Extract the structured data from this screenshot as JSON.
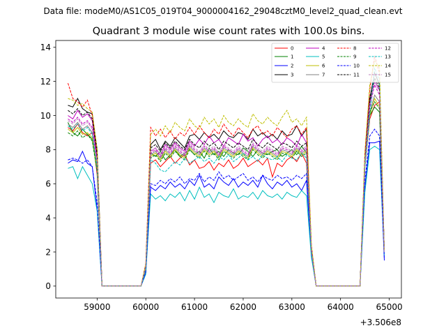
{
  "chart_data": {
    "type": "line",
    "supertitle": "Data file: modeM0/AS1C05_019T04_9000004162_29048cztM0_level2_quad_clean.evt",
    "title": "Quadrant 3 module wise count rates with 100.0s bins.",
    "xlabel": "",
    "ylabel": "",
    "x_offset_label": "+3.506e8",
    "xlim": [
      58150,
      65250
    ],
    "ylim": [
      -0.7,
      14.4
    ],
    "xticks": [
      59000,
      60000,
      61000,
      62000,
      63000,
      64000,
      65000
    ],
    "yticks": [
      0,
      2,
      4,
      6,
      8,
      10,
      12,
      14
    ],
    "grid": false,
    "legend_position": "top-right",
    "x": [
      58400,
      58500,
      58600,
      58700,
      58800,
      58900,
      59000,
      59100,
      59900,
      60000,
      60100,
      60200,
      60300,
      60400,
      60500,
      60600,
      60700,
      60800,
      60900,
      61000,
      61100,
      61200,
      61300,
      61400,
      61500,
      61600,
      61700,
      61800,
      61900,
      62000,
      62100,
      62200,
      62300,
      62400,
      62500,
      62600,
      62700,
      62800,
      62900,
      63000,
      63100,
      63200,
      63300,
      63400,
      63500,
      64400,
      64500,
      64600,
      64700,
      64800,
      64900
    ],
    "series": [
      {
        "name": "0",
        "color": "#ff0000",
        "dash": false,
        "values": [
          9.3,
          9.1,
          9.5,
          9.0,
          8.8,
          9.0,
          6.5,
          0,
          0,
          1.0,
          7.2,
          7.4,
          7.0,
          7.3,
          7.6,
          7.2,
          7.5,
          7.7,
          7.1,
          7.4,
          6.9,
          7.0,
          7.3,
          6.8,
          7.2,
          7.0,
          7.4,
          6.9,
          7.1,
          7.5,
          7.0,
          7.2,
          7.4,
          7.1,
          7.5,
          6.4,
          7.2,
          7.0,
          7.4,
          7.6,
          7.3,
          7.8,
          7.2,
          2.0,
          0,
          0,
          7.0,
          9.8,
          10.6,
          10.8,
          2.0
        ]
      },
      {
        "name": "1",
        "color": "#008000",
        "dash": false,
        "values": [
          9.6,
          9.0,
          8.8,
          9.2,
          8.9,
          8.6,
          6.8,
          0,
          0,
          1.0,
          7.8,
          7.6,
          7.9,
          7.4,
          7.7,
          8.0,
          7.6,
          7.8,
          8.0,
          7.7,
          7.9,
          7.5,
          8.1,
          7.7,
          7.9,
          7.6,
          8.0,
          7.8,
          7.7,
          8.1,
          7.9,
          7.6,
          8.0,
          7.8,
          7.7,
          7.9,
          8.0,
          7.6,
          7.8,
          8.0,
          7.7,
          8.2,
          7.8,
          2.0,
          0,
          0,
          7.2,
          10.0,
          10.5,
          10.2,
          2.0
        ]
      },
      {
        "name": "2",
        "color": "#0000ff",
        "dash": false,
        "values": [
          7.2,
          7.4,
          7.3,
          7.9,
          7.2,
          7.0,
          4.5,
          0,
          0,
          0.8,
          5.8,
          5.6,
          5.9,
          5.7,
          6.1,
          5.8,
          6.0,
          5.7,
          6.2,
          5.9,
          6.5,
          5.8,
          6.0,
          5.7,
          6.4,
          6.1,
          5.9,
          6.3,
          5.8,
          6.1,
          5.9,
          6.2,
          5.8,
          6.5,
          6.0,
          5.7,
          6.1,
          5.9,
          6.2,
          5.8,
          6.0,
          5.6,
          6.2,
          1.8,
          0,
          0,
          5.8,
          8.4,
          8.4,
          8.5,
          1.5
        ]
      },
      {
        "name": "3",
        "color": "#000000",
        "dash": false,
        "values": [
          10.6,
          10.5,
          11.0,
          10.4,
          10.2,
          10.1,
          8.0,
          0,
          0,
          1.2,
          8.3,
          8.6,
          8.0,
          8.5,
          8.2,
          8.7,
          8.4,
          8.1,
          8.8,
          8.9,
          8.6,
          9.0,
          8.7,
          8.9,
          8.6,
          9.1,
          8.8,
          8.7,
          9.0,
          8.9,
          8.6,
          9.2,
          8.8,
          9.0,
          8.7,
          8.9,
          8.6,
          9.1,
          8.8,
          8.9,
          9.4,
          8.8,
          9.2,
          2.3,
          0,
          0,
          7.5,
          11.0,
          12.5,
          11.8,
          2.0
        ]
      },
      {
        "name": "4",
        "color": "#bf00bf",
        "dash": false,
        "values": [
          10.0,
          9.8,
          10.3,
          9.9,
          10.1,
          9.7,
          7.5,
          0,
          0,
          1.1,
          7.9,
          8.1,
          7.7,
          8.3,
          8.0,
          8.4,
          8.1,
          7.9,
          8.5,
          8.2,
          8.6,
          8.3,
          8.8,
          8.4,
          8.6,
          8.2,
          8.7,
          8.5,
          8.3,
          8.9,
          8.5,
          8.7,
          8.2,
          8.6,
          8.8,
          8.4,
          8.6,
          8.3,
          8.7,
          8.5,
          8.2,
          8.9,
          8.4,
          2.2,
          0,
          0,
          7.3,
          10.8,
          12.0,
          11.5,
          2.0
        ]
      },
      {
        "name": "5",
        "color": "#00bfbf",
        "dash": false,
        "values": [
          6.9,
          7.0,
          6.3,
          7.0,
          6.5,
          6.0,
          4.4,
          0,
          0,
          0.7,
          5.4,
          5.1,
          5.3,
          5.0,
          5.4,
          5.2,
          5.5,
          5.0,
          5.6,
          5.1,
          5.8,
          5.2,
          5.4,
          4.9,
          5.5,
          5.3,
          5.2,
          5.7,
          5.1,
          5.3,
          5.2,
          5.5,
          5.1,
          5.6,
          5.3,
          5.2,
          5.4,
          5.1,
          5.5,
          5.3,
          5.2,
          5.6,
          5.3,
          1.7,
          0,
          0,
          5.5,
          8.0,
          8.2,
          8.0,
          1.8
        ]
      },
      {
        "name": "6",
        "color": "#bfbf00",
        "dash": false,
        "values": [
          9.2,
          9.0,
          9.3,
          8.9,
          9.0,
          8.7,
          6.9,
          0,
          0,
          1.0,
          7.6,
          7.8,
          7.4,
          7.9,
          7.6,
          8.0,
          7.7,
          7.5,
          8.1,
          7.8,
          7.6,
          8.0,
          7.7,
          7.9,
          7.5,
          8.0,
          7.8,
          7.6,
          7.9,
          7.7,
          7.5,
          8.1,
          7.8,
          7.6,
          7.9,
          7.7,
          7.5,
          7.9,
          7.8,
          7.6,
          8.0,
          7.7,
          7.9,
          2.0,
          0,
          0,
          7.0,
          10.0,
          11.0,
          10.5,
          2.0
        ]
      },
      {
        "name": "7",
        "color": "#808080",
        "dash": false,
        "values": [
          9.5,
          9.3,
          9.6,
          9.2,
          9.4,
          9.0,
          7.1,
          0,
          0,
          1.1,
          7.7,
          7.9,
          7.5,
          8.0,
          7.7,
          8.1,
          7.8,
          7.6,
          8.2,
          7.9,
          7.7,
          8.1,
          7.8,
          8.0,
          7.6,
          8.1,
          7.9,
          7.7,
          8.0,
          7.8,
          7.6,
          8.2,
          7.9,
          7.7,
          8.0,
          7.8,
          7.6,
          8.0,
          7.9,
          7.7,
          8.1,
          7.8,
          8.0,
          2.1,
          0,
          0,
          7.1,
          10.2,
          11.2,
          10.8,
          2.0
        ]
      },
      {
        "name": "8",
        "color": "#ff0000",
        "dash": true,
        "values": [
          11.9,
          11.0,
          10.8,
          10.5,
          10.9,
          10.0,
          7.8,
          0,
          0,
          1.3,
          9.3,
          8.8,
          9.2,
          8.7,
          9.1,
          8.6,
          9.0,
          8.8,
          9.3,
          8.9,
          9.4,
          9.0,
          8.7,
          9.2,
          8.9,
          9.5,
          9.1,
          8.8,
          9.3,
          9.0,
          8.7,
          9.2,
          9.4,
          8.9,
          9.1,
          8.8,
          9.3,
          9.0,
          8.7,
          9.2,
          9.4,
          8.9,
          9.3,
          2.4,
          0,
          0,
          7.8,
          11.5,
          13.5,
          12.5,
          2.0
        ]
      },
      {
        "name": "9",
        "color": "#008000",
        "dash": true,
        "values": [
          9.0,
          8.8,
          9.1,
          8.7,
          8.9,
          8.5,
          6.7,
          0,
          0,
          1.0,
          7.5,
          7.7,
          7.3,
          7.8,
          7.5,
          7.9,
          7.6,
          7.4,
          8.0,
          7.7,
          7.5,
          7.9,
          7.6,
          7.8,
          7.4,
          7.9,
          7.7,
          7.5,
          7.8,
          7.6,
          7.4,
          8.0,
          7.7,
          7.5,
          7.8,
          7.6,
          7.4,
          7.8,
          7.7,
          7.5,
          7.9,
          7.6,
          7.8,
          2.0,
          0,
          0,
          7.0,
          10.2,
          10.8,
          10.4,
          2.0
        ]
      },
      {
        "name": "10",
        "color": "#0000ff",
        "dash": true,
        "values": [
          7.4,
          7.5,
          7.4,
          7.2,
          7.4,
          7.0,
          4.9,
          0,
          0,
          0.8,
          6.0,
          5.9,
          6.2,
          6.0,
          6.3,
          6.1,
          6.4,
          6.0,
          6.3,
          6.2,
          6.6,
          6.1,
          6.4,
          6.2,
          6.7,
          6.3,
          6.5,
          6.2,
          6.4,
          6.6,
          6.2,
          6.4,
          6.1,
          6.5,
          6.3,
          6.2,
          6.5,
          6.3,
          6.4,
          6.2,
          6.5,
          6.3,
          6.6,
          1.9,
          0,
          0,
          6.2,
          8.8,
          9.2,
          8.8,
          1.6
        ]
      },
      {
        "name": "11",
        "color": "#000000",
        "dash": true,
        "values": [
          10.3,
          10.1,
          10.4,
          10.0,
          10.2,
          9.8,
          7.7,
          0,
          0,
          1.2,
          8.1,
          8.3,
          7.9,
          8.4,
          8.1,
          8.5,
          8.2,
          8.0,
          8.6,
          8.3,
          8.1,
          8.5,
          8.2,
          8.4,
          8.0,
          8.5,
          8.3,
          8.1,
          8.4,
          8.2,
          8.0,
          8.6,
          8.3,
          8.1,
          8.4,
          8.2,
          8.0,
          8.4,
          8.3,
          8.1,
          8.5,
          8.2,
          8.4,
          2.2,
          0,
          0,
          7.4,
          10.8,
          12.2,
          11.6,
          2.0
        ]
      },
      {
        "name": "12",
        "color": "#bf00bf",
        "dash": true,
        "values": [
          9.8,
          9.6,
          9.9,
          9.5,
          9.7,
          9.3,
          7.3,
          0,
          0,
          1.1,
          7.8,
          8.0,
          7.6,
          8.1,
          7.8,
          8.2,
          7.9,
          7.7,
          8.3,
          8.0,
          7.8,
          8.2,
          7.9,
          8.1,
          7.7,
          8.2,
          8.0,
          7.8,
          8.1,
          7.9,
          7.7,
          8.3,
          8.0,
          7.8,
          8.1,
          7.9,
          7.7,
          8.1,
          8.0,
          7.8,
          8.2,
          7.9,
          8.1,
          2.1,
          0,
          0,
          7.2,
          10.5,
          11.8,
          11.2,
          2.0
        ]
      },
      {
        "name": "13",
        "color": "#00bfbf",
        "dash": true,
        "values": [
          9.4,
          9.2,
          9.5,
          9.1,
          9.3,
          8.9,
          7.0,
          0,
          0,
          1.0,
          7.4,
          7.2,
          6.8,
          6.7,
          7.0,
          7.3,
          7.1,
          7.5,
          7.2,
          7.4,
          7.6,
          7.3,
          7.5,
          7.2,
          7.6,
          7.4,
          7.7,
          7.3,
          7.5,
          7.8,
          7.4,
          7.6,
          7.3,
          7.7,
          7.5,
          7.4,
          7.6,
          7.3,
          7.7,
          7.5,
          7.4,
          7.8,
          7.5,
          2.0,
          0,
          0,
          7.0,
          10.0,
          12.8,
          12.0,
          2.0
        ]
      },
      {
        "name": "14",
        "color": "#bfbf00",
        "dash": true,
        "values": [
          11.0,
          10.9,
          10.6,
          10.7,
          10.4,
          10.2,
          8.0,
          0,
          0,
          1.3,
          8.9,
          9.2,
          8.8,
          9.4,
          9.0,
          9.6,
          9.3,
          9.1,
          9.8,
          9.4,
          9.2,
          9.9,
          9.5,
          9.8,
          9.3,
          10.0,
          9.6,
          9.4,
          9.8,
          9.5,
          9.3,
          10.1,
          9.7,
          9.5,
          9.9,
          9.6,
          9.4,
          9.9,
          10.3,
          9.6,
          9.8,
          9.4,
          9.9,
          2.4,
          0,
          0,
          7.8,
          11.8,
          13.2,
          12.8,
          2.0
        ]
      },
      {
        "name": "15",
        "color": "#bf80bf",
        "dash": true,
        "values": [
          9.7,
          9.5,
          9.8,
          9.4,
          9.6,
          9.2,
          7.2,
          0,
          0,
          1.1,
          7.9,
          8.1,
          7.7,
          8.2,
          7.9,
          8.3,
          8.0,
          7.8,
          8.4,
          8.1,
          7.9,
          8.3,
          8.0,
          8.2,
          7.8,
          8.3,
          8.1,
          7.9,
          8.2,
          8.0,
          7.8,
          8.4,
          8.1,
          7.9,
          8.2,
          8.0,
          7.8,
          8.2,
          8.1,
          7.9,
          8.3,
          8.0,
          8.2,
          2.1,
          0,
          0,
          7.2,
          10.6,
          12.0,
          11.4,
          2.0
        ]
      }
    ]
  }
}
